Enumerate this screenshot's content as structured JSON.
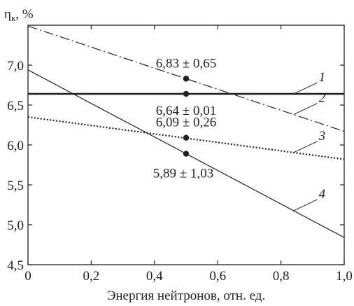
{
  "chart_data": {
    "type": "line",
    "ylabel": "η",
    "ylabel_sub": "к",
    "ylabel_unit": ", %",
    "xlabel": "Энергия нейтронов, отн. ед.",
    "xlim": [
      0,
      1.0
    ],
    "ylim": [
      4.5,
      7.5
    ],
    "x_ticks": [
      0,
      0.2,
      0.4,
      0.6,
      0.8,
      1.0
    ],
    "x_tick_labels": [
      "0",
      "0,2",
      "0,4",
      "0,6",
      "0,8",
      "1,0"
    ],
    "y_ticks": [
      4.5,
      5.0,
      5.5,
      6.0,
      6.5,
      7.0
    ],
    "y_tick_labels": [
      "4,5",
      "5,0",
      "5,5",
      "6,0",
      "6,5",
      "7,0"
    ],
    "grid": false,
    "series": [
      {
        "name": "1",
        "style": "solid-thick",
        "x": [
          0,
          1.0
        ],
        "y": [
          6.64,
          6.64
        ]
      },
      {
        "name": "2",
        "style": "dash-dot",
        "x": [
          0,
          1.0
        ],
        "y": [
          7.49,
          6.17
        ]
      },
      {
        "name": "3",
        "style": "dotted",
        "x": [
          0,
          1.0
        ],
        "y": [
          6.35,
          5.82
        ]
      },
      {
        "name": "4",
        "style": "solid-thin",
        "x": [
          0,
          1.0
        ],
        "y": [
          6.94,
          4.84
        ]
      }
    ],
    "points": [
      {
        "x": 0.5,
        "y": 6.83,
        "label": "6,83 ± 0,65"
      },
      {
        "x": 0.5,
        "y": 6.64,
        "label": "6,64 ± 0,01"
      },
      {
        "x": 0.5,
        "y": 6.09,
        "label": "6,09 ± 0,26"
      },
      {
        "x": 0.5,
        "y": 5.89,
        "label": "5,89 ± 1,03"
      }
    ]
  }
}
